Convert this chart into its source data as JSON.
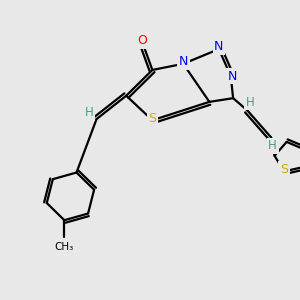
{
  "background_color": "#e8e8e8",
  "atom_colors": {
    "C": "#000000",
    "N": "#0000ee",
    "O": "#ff0000",
    "S": "#ccaa00",
    "H": "#4a9a8a"
  },
  "figsize": [
    3.0,
    3.0
  ],
  "dpi": 100
}
